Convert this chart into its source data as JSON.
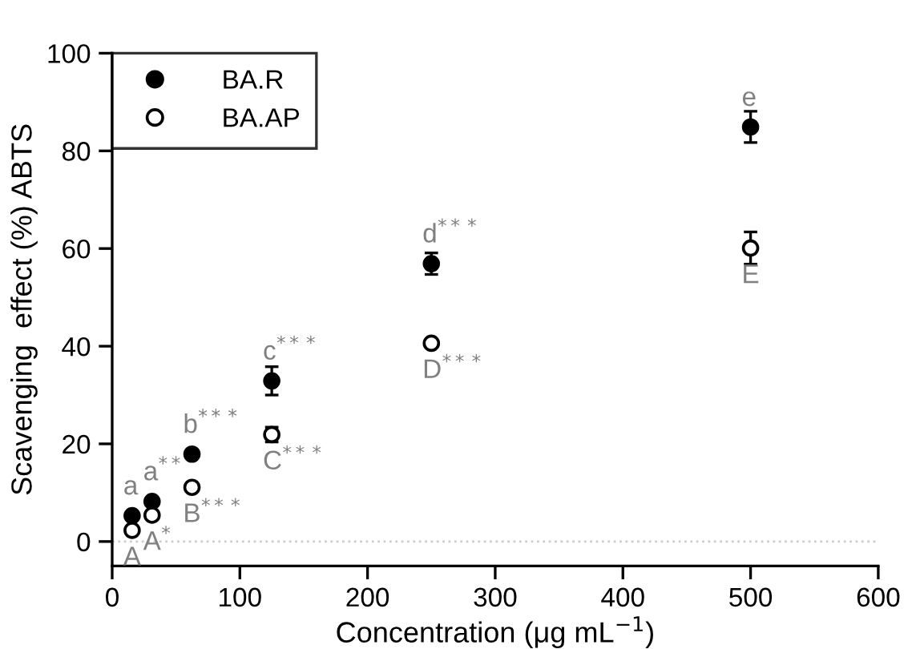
{
  "chart_data": {
    "type": "scatter",
    "xlabel": "Concentration (μg mL$^{−1}$)",
    "ylabel": "Scavenging  effect (%) ABTS",
    "x": [
      15.625,
      31.25,
      62.5,
      125,
      250,
      500
    ],
    "series": [
      {
        "name": "BA.R",
        "color": "#000000",
        "values": [
          5.3,
          8.2,
          17.9,
          32.9,
          56.9,
          84.9
        ],
        "errors": [
          null,
          null,
          null,
          2.9,
          2.2,
          3.2
        ]
      },
      {
        "name": "BA.AP",
        "color": "#000000",
        "values": [
          2.3,
          5.4,
          11.1,
          21.9,
          40.6,
          60.1
        ],
        "errors": [
          null,
          null,
          null,
          1.5,
          null,
          3.3
        ]
      }
    ],
    "xlim": [
      0,
      600
    ],
    "xticks": [
      0,
      100,
      200,
      300,
      400,
      500,
      600
    ],
    "ylim": [
      -5,
      100
    ],
    "yticks": [
      0,
      20,
      40,
      60,
      80,
      100
    ],
    "ref_lines": [
      {
        "axis": "y",
        "value": 0,
        "color": "#cccccc",
        "line_style": "dotted"
      }
    ],
    "annotations": [
      {
        "text": "a",
        "x": 15.625,
        "y": 5.3
      },
      {
        "text": "a$^{**}$",
        "x": 31.25,
        "y": 8.2
      },
      {
        "text": "b$^{***}$",
        "x": 62.5,
        "y": 17.9
      },
      {
        "text": "c$^{***}$",
        "x": 125,
        "y": 32.9
      },
      {
        "text": "d$^{***}$",
        "x": 250,
        "y": 56.9
      },
      {
        "text": "e",
        "x": 500,
        "y": 84.9
      },
      {
        "text": "A",
        "x": 15.625,
        "y": 2.3
      },
      {
        "text": "A$^{*}$",
        "x": 31.25,
        "y": 5.4
      },
      {
        "text": "B$^{***}$",
        "x": 62.5,
        "y": 11.1
      },
      {
        "text": "C$^{***}$",
        "x": 125,
        "y": 21.9
      },
      {
        "text": "D$^{***}$",
        "x": 250,
        "y": 40.6
      },
      {
        "text": "E",
        "x": 500,
        "y": 60.1
      }
    ],
    "grid": false,
    "legend": "top left",
    "marker": "circle"
  }
}
